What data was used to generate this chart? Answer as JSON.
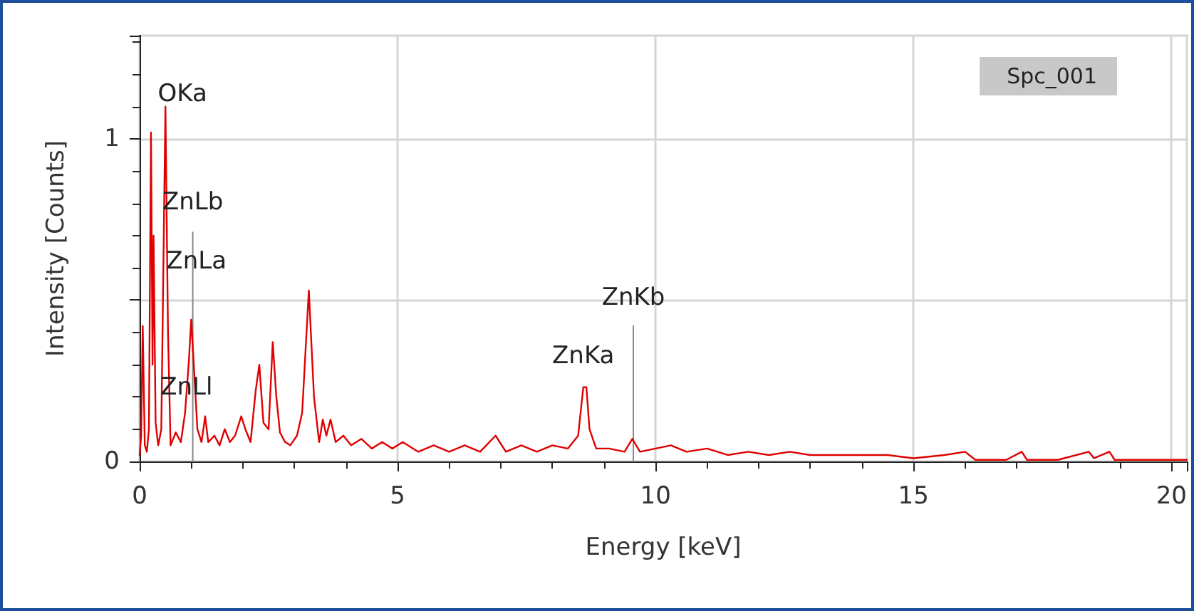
{
  "chart_data": {
    "type": "line",
    "xlabel": "Energy [keV]",
    "ylabel": "Intensity [Counts]",
    "xlim": [
      0,
      20.3
    ],
    "ylim": [
      0,
      1.32
    ],
    "xticks": [
      0,
      5,
      10,
      15,
      20
    ],
    "yticks": [
      0,
      {
        "value": 0.5,
        "label": null
      },
      1
    ],
    "grid": true,
    "legend": "top right",
    "marker": "none",
    "line_style": "solid",
    "series": [
      {
        "name": "Spc_001",
        "color": "#e00000",
        "x": [
          0,
          0.03,
          0.06,
          0.1,
          0.14,
          0.18,
          0.22,
          0.25,
          0.27,
          0.31,
          0.36,
          0.42,
          0.46,
          0.5,
          0.55,
          0.6,
          0.7,
          0.8,
          0.88,
          0.95,
          1.0,
          1.05,
          1.12,
          1.2,
          1.27,
          1.33,
          1.45,
          1.55,
          1.65,
          1.75,
          1.85,
          1.97,
          2.05,
          2.15,
          2.25,
          2.32,
          2.4,
          2.5,
          2.58,
          2.65,
          2.72,
          2.82,
          2.92,
          3.05,
          3.15,
          3.28,
          3.38,
          3.48,
          3.55,
          3.62,
          3.7,
          3.8,
          3.95,
          4.1,
          4.3,
          4.5,
          4.7,
          4.9,
          5.1,
          5.4,
          5.7,
          6.0,
          6.3,
          6.6,
          6.9,
          7.1,
          7.4,
          7.7,
          8.0,
          8.3,
          8.5,
          8.6,
          8.66,
          8.72,
          8.85,
          9.1,
          9.4,
          9.55,
          9.7,
          10.0,
          10.3,
          10.6,
          11.0,
          11.4,
          11.8,
          12.2,
          12.6,
          13.0,
          13.5,
          14.0,
          14.5,
          15.0,
          15.6,
          16.0,
          16.2,
          16.8,
          17.1,
          17.2,
          17.8,
          18.4,
          18.5,
          18.8,
          18.9,
          19.5,
          20.3
        ],
        "values": [
          0.02,
          0.08,
          0.42,
          0.05,
          0.03,
          0.1,
          1.02,
          0.3,
          0.7,
          0.12,
          0.05,
          0.1,
          0.6,
          1.1,
          0.4,
          0.05,
          0.09,
          0.06,
          0.15,
          0.3,
          0.44,
          0.3,
          0.1,
          0.06,
          0.14,
          0.06,
          0.08,
          0.05,
          0.1,
          0.06,
          0.08,
          0.14,
          0.1,
          0.06,
          0.22,
          0.3,
          0.12,
          0.1,
          0.37,
          0.2,
          0.09,
          0.06,
          0.05,
          0.08,
          0.15,
          0.53,
          0.2,
          0.06,
          0.13,
          0.08,
          0.13,
          0.06,
          0.08,
          0.05,
          0.07,
          0.04,
          0.06,
          0.04,
          0.06,
          0.03,
          0.05,
          0.03,
          0.05,
          0.03,
          0.08,
          0.03,
          0.05,
          0.03,
          0.05,
          0.04,
          0.08,
          0.23,
          0.23,
          0.1,
          0.04,
          0.04,
          0.03,
          0.07,
          0.03,
          0.04,
          0.05,
          0.03,
          0.04,
          0.02,
          0.03,
          0.02,
          0.03,
          0.02,
          0.02,
          0.02,
          0.02,
          0.01,
          0.02,
          0.03,
          0.005,
          0.005,
          0.03,
          0.005,
          0.005,
          0.03,
          0.01,
          0.03,
          0.005,
          0.005,
          0.005
        ]
      },
      {
        "color": "#888888",
        "x": [
          1.03,
          1.03
        ],
        "values": [
          0,
          0.71
        ]
      },
      {
        "color": "#888888",
        "x": [
          9.57,
          9.57
        ],
        "values": [
          0,
          0.42
        ]
      }
    ],
    "annotations": [
      {
        "text": "OKa",
        "x": 0.5,
        "y": 1.1
      },
      {
        "text": "ZnLb",
        "x": 1.03,
        "y": 0.71
      },
      {
        "text": "ZnLa",
        "x": 1.1,
        "y": 0.62
      },
      {
        "text": "ZnLl",
        "x": 0.91,
        "y": 0.23
      },
      {
        "text": "ZnKa",
        "x": 8.6,
        "y": 0.23
      },
      {
        "text": "ZnKb",
        "x": 9.57,
        "y": 0.42
      }
    ]
  }
}
